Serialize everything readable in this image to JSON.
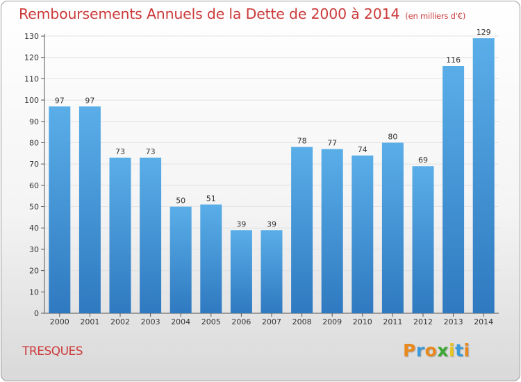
{
  "header": {
    "title": "Remboursements Annuels de la Dette de 2000 à 2014",
    "unit": "(en milliers d'€)"
  },
  "footer": {
    "commune": "TRESQUES",
    "logo_text": "Proxiti"
  },
  "colors": {
    "title": "#cc3a3a",
    "bar_top": "#5aaee8",
    "bar_bottom": "#2f79c0",
    "logo_letters": [
      "#e8891e",
      "#3a9ad9",
      "#e8891e",
      "#3aa832",
      "#e8c41e",
      "#3a9ad9",
      "#e8891e"
    ]
  },
  "chart_data": {
    "type": "bar",
    "categories": [
      "2000",
      "2001",
      "2002",
      "2003",
      "2004",
      "2005",
      "2006",
      "2007",
      "2008",
      "2009",
      "2010",
      "2011",
      "2012",
      "2013",
      "2014"
    ],
    "values": [
      97,
      97,
      73,
      73,
      50,
      51,
      39,
      39,
      78,
      77,
      74,
      80,
      69,
      116,
      129
    ],
    "title": "Remboursements Annuels de la Dette de 2000 à 2014",
    "xlabel": "",
    "ylabel": "",
    "ylim": [
      0,
      130
    ],
    "yticks": [
      0,
      10,
      20,
      30,
      40,
      50,
      60,
      70,
      80,
      90,
      100,
      110,
      120,
      130
    ],
    "grid": true,
    "legend": "none",
    "data_labels": true
  }
}
